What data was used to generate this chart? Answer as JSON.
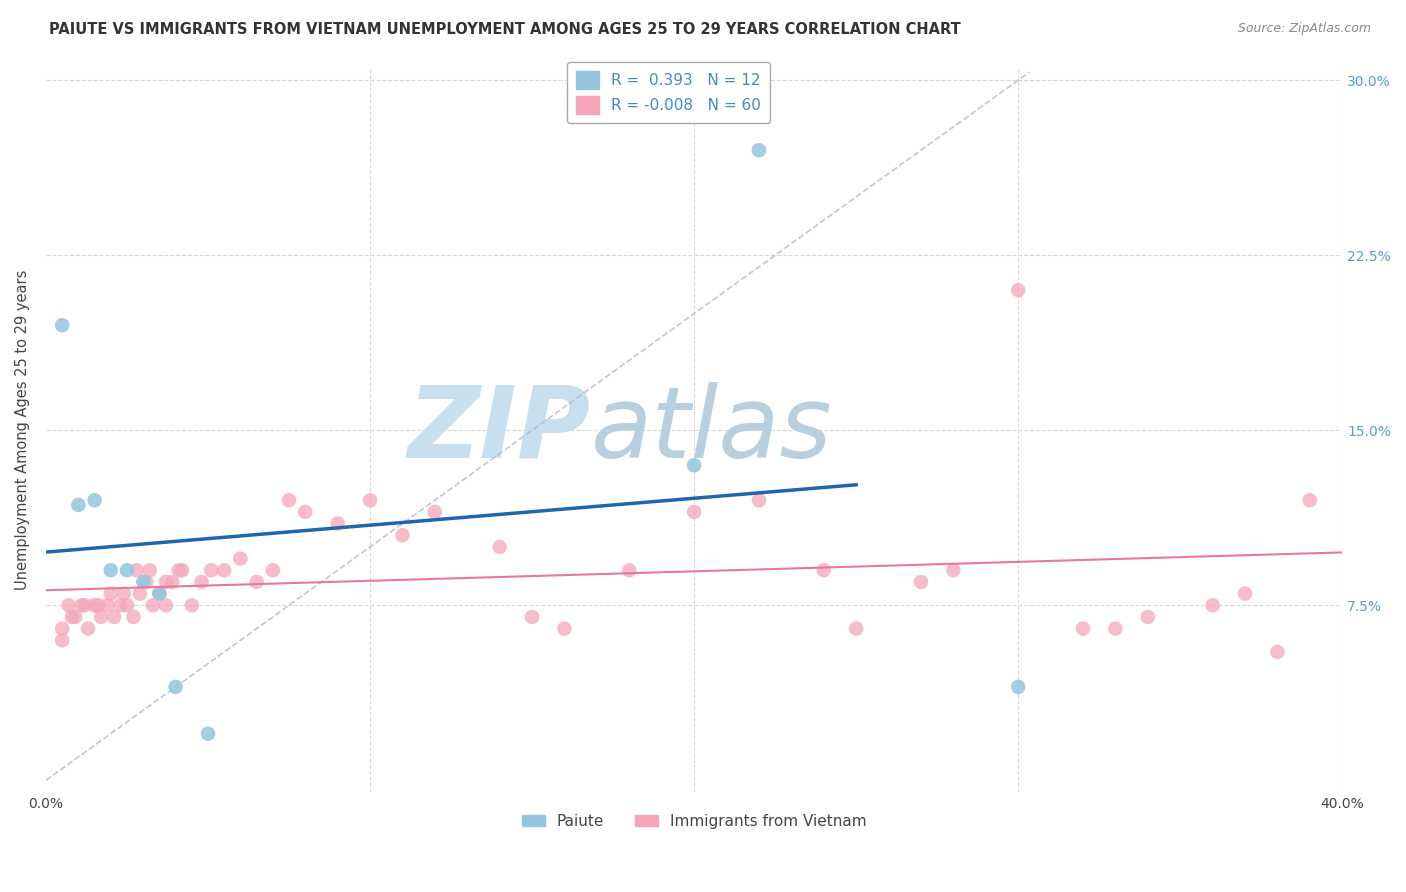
{
  "title": "PAIUTE VS IMMIGRANTS FROM VIETNAM UNEMPLOYMENT AMONG AGES 25 TO 29 YEARS CORRELATION CHART",
  "source": "Source: ZipAtlas.com",
  "ylabel": "Unemployment Among Ages 25 to 29 years",
  "xlim": [
    0.0,
    0.4
  ],
  "ylim": [
    -0.005,
    0.305
  ],
  "legend_blue_r": "0.393",
  "legend_blue_n": "12",
  "legend_pink_r": "-0.008",
  "legend_pink_n": "60",
  "blue_color": "#92c5de",
  "pink_color": "#f4a6b8",
  "blue_line_color": "#2166ac",
  "pink_line_color": "#e8789a",
  "watermark_zip": "ZIP",
  "watermark_atlas": "atlas",
  "watermark_color_zip": "#c8dff0",
  "watermark_color_atlas": "#b8cfe0",
  "paiute_x": [
    0.005,
    0.01,
    0.015,
    0.02,
    0.025,
    0.03,
    0.035,
    0.04,
    0.05,
    0.2,
    0.22,
    0.3
  ],
  "paiute_y": [
    0.195,
    0.118,
    0.12,
    0.09,
    0.09,
    0.085,
    0.08,
    0.04,
    0.02,
    0.135,
    0.27,
    0.04
  ],
  "vietnam_x": [
    0.005,
    0.007,
    0.009,
    0.011,
    0.013,
    0.015,
    0.017,
    0.019,
    0.021,
    0.023,
    0.025,
    0.027,
    0.029,
    0.031,
    0.033,
    0.035,
    0.037,
    0.039,
    0.042,
    0.045,
    0.048,
    0.051,
    0.055,
    0.06,
    0.065,
    0.07,
    0.075,
    0.08,
    0.09,
    0.1,
    0.11,
    0.12,
    0.14,
    0.15,
    0.16,
    0.18,
    0.2,
    0.22,
    0.24,
    0.25,
    0.27,
    0.28,
    0.3,
    0.32,
    0.33,
    0.34,
    0.36,
    0.37,
    0.38,
    0.39,
    0.005,
    0.008,
    0.012,
    0.016,
    0.02,
    0.024,
    0.028,
    0.032,
    0.037,
    0.041
  ],
  "vietnam_y": [
    0.065,
    0.075,
    0.07,
    0.075,
    0.065,
    0.075,
    0.07,
    0.075,
    0.07,
    0.075,
    0.075,
    0.07,
    0.08,
    0.085,
    0.075,
    0.08,
    0.075,
    0.085,
    0.09,
    0.075,
    0.085,
    0.09,
    0.09,
    0.095,
    0.085,
    0.09,
    0.12,
    0.115,
    0.11,
    0.12,
    0.105,
    0.115,
    0.1,
    0.07,
    0.065,
    0.09,
    0.115,
    0.12,
    0.09,
    0.065,
    0.085,
    0.09,
    0.21,
    0.065,
    0.065,
    0.07,
    0.075,
    0.08,
    0.055,
    0.12,
    0.06,
    0.07,
    0.075,
    0.075,
    0.08,
    0.08,
    0.09,
    0.09,
    0.085,
    0.09
  ]
}
